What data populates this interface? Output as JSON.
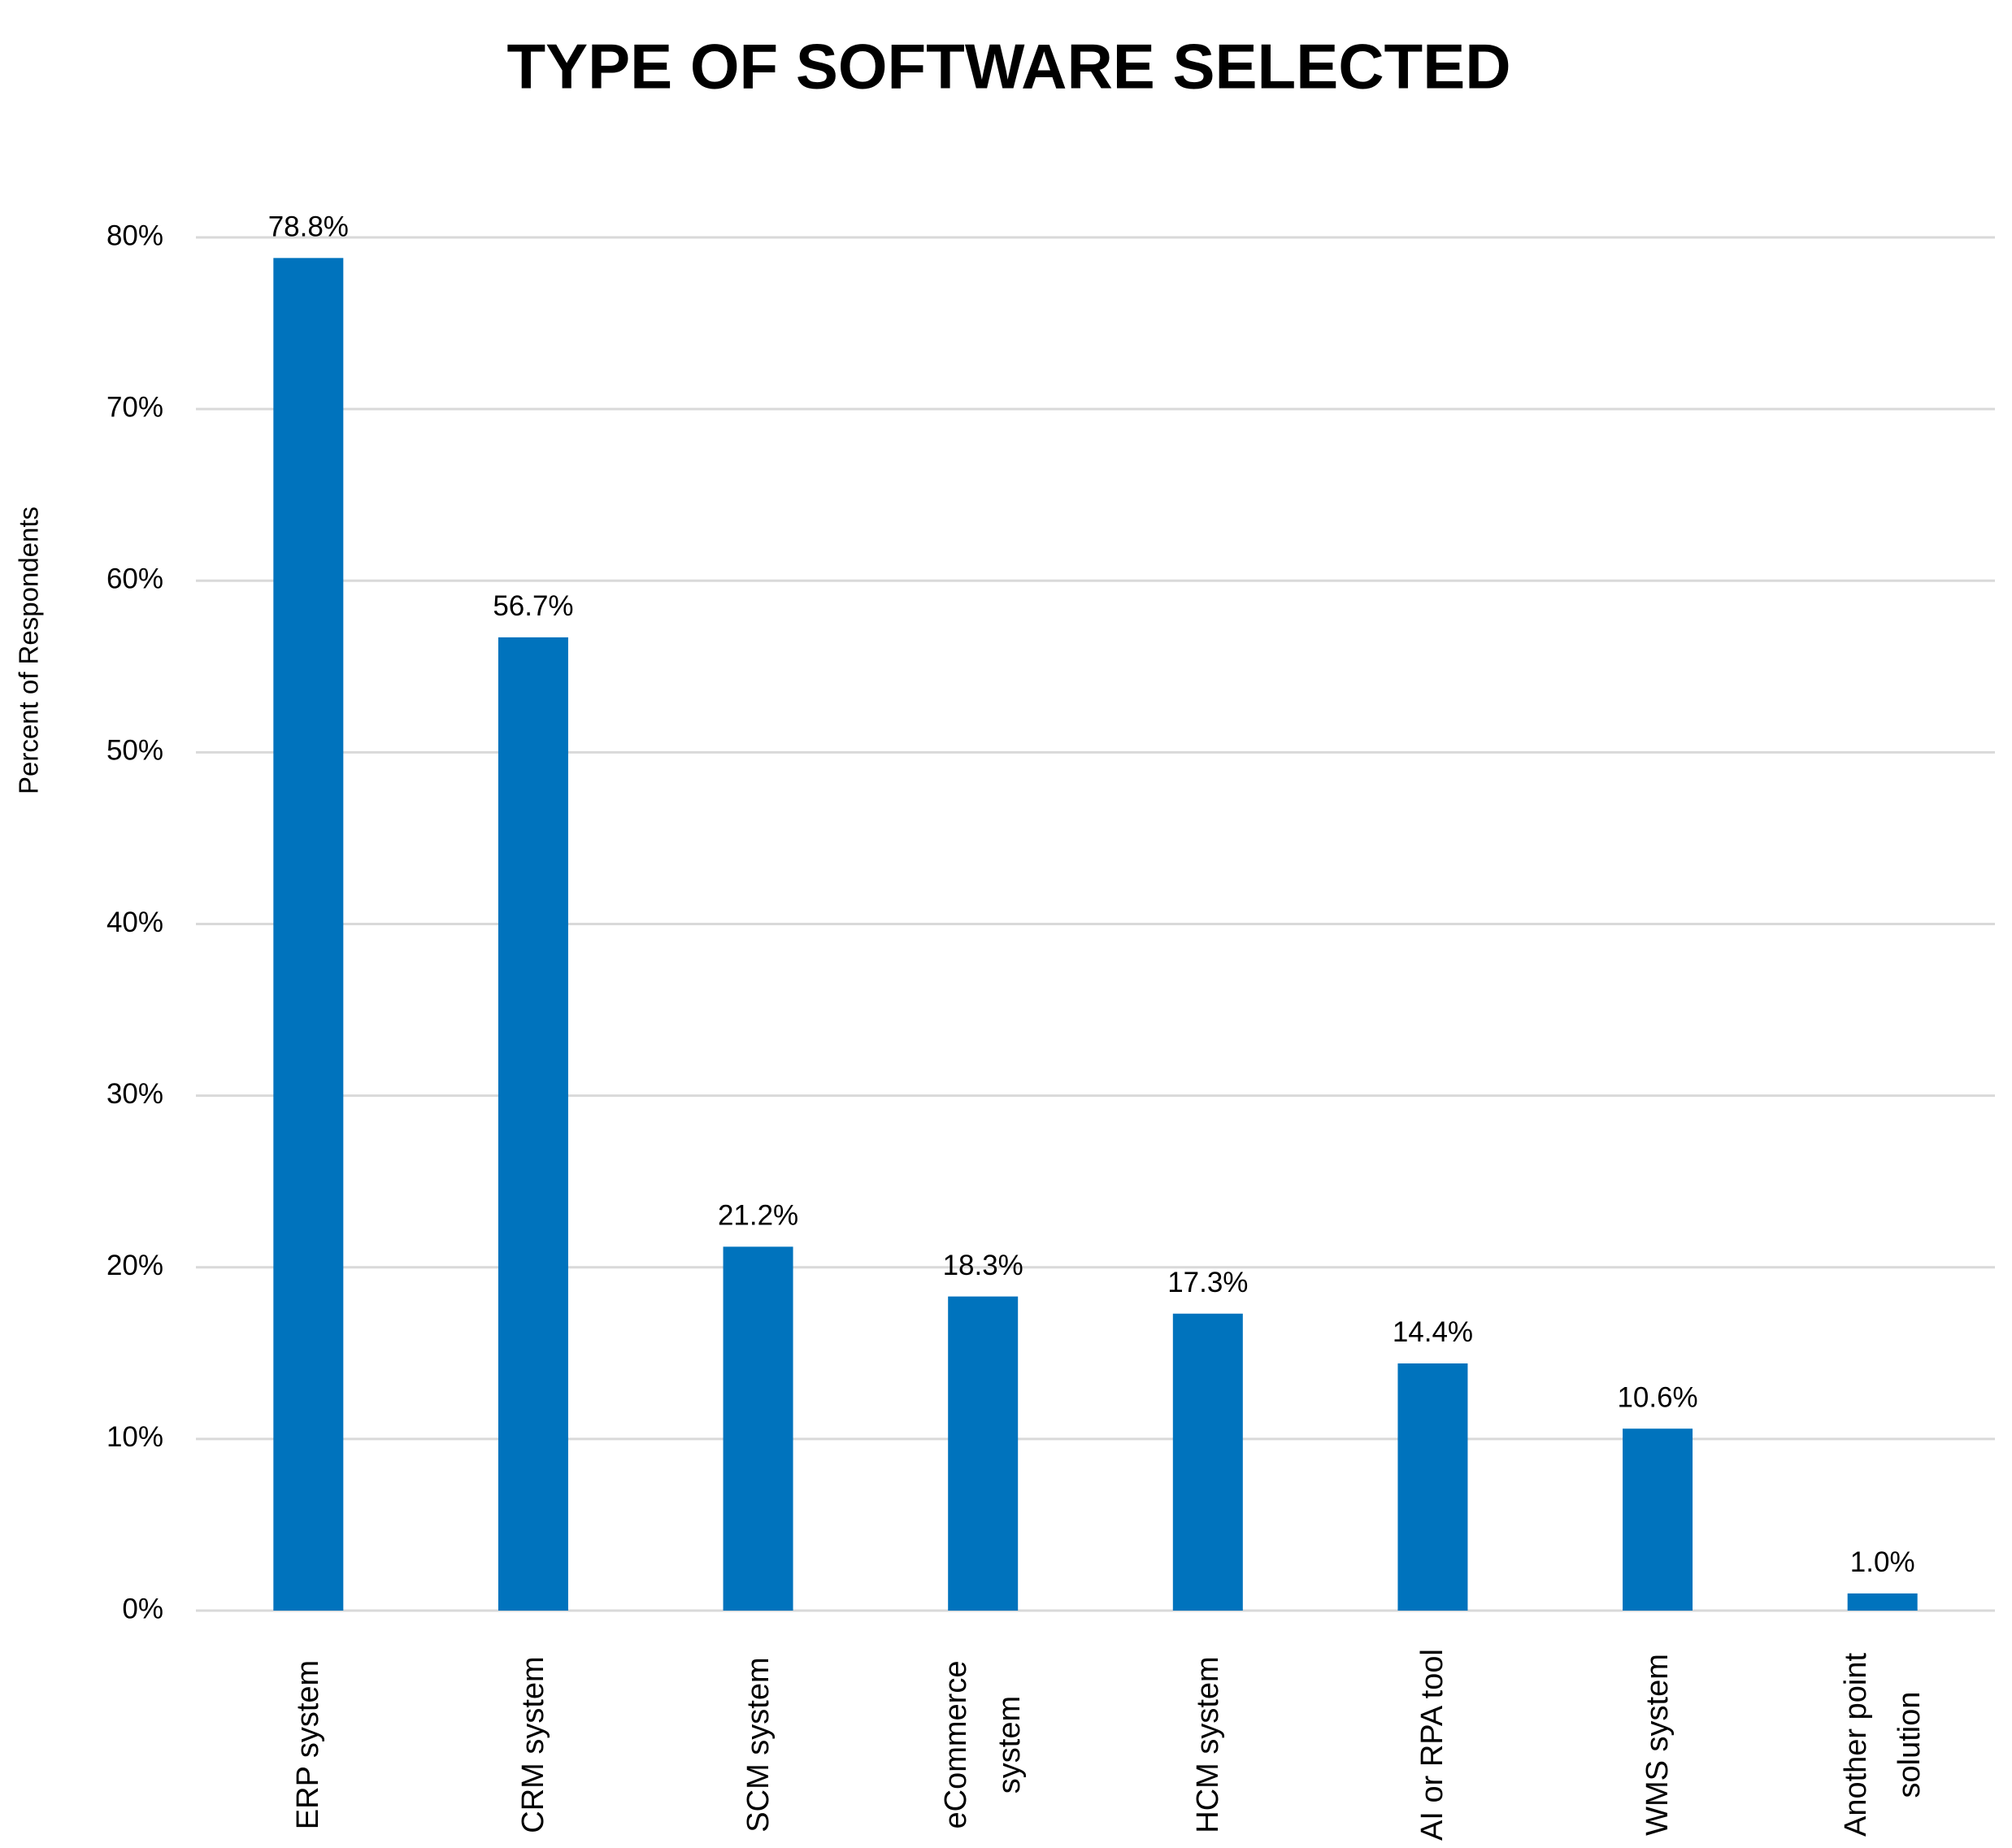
{
  "chart_data": {
    "type": "bar",
    "title": "TYPE OF SOFTWARE SELECTED",
    "y_label": "Percent of Respondents",
    "categories": [
      "ERP system",
      "CRM system",
      "SCM system",
      "eCommerce system",
      "HCM system",
      "AI or RPA tool",
      "WMS system",
      "Another point solution"
    ],
    "values": [
      78.8,
      56.7,
      21.2,
      18.3,
      17.3,
      14.4,
      10.6,
      1.0
    ],
    "value_labels": [
      "78.8%",
      "56.7%",
      "21.2%",
      "18.3%",
      "17.3%",
      "14.4%",
      "10.6%",
      "1.0%"
    ],
    "color": "#0073bd",
    "ylim": [
      0,
      80
    ],
    "yticks": [
      {
        "value": 0,
        "label": "0%"
      },
      {
        "value": 10,
        "label": "10%"
      },
      {
        "value": 20,
        "label": "20%"
      },
      {
        "value": 30,
        "label": "30%"
      },
      {
        "value": 40,
        "label": "40%"
      },
      {
        "value": 50,
        "label": "50%"
      },
      {
        "value": 60,
        "label": "60%"
      },
      {
        "value": 70,
        "label": "70%"
      },
      {
        "value": 80,
        "label": "80%"
      }
    ],
    "grid": true
  }
}
